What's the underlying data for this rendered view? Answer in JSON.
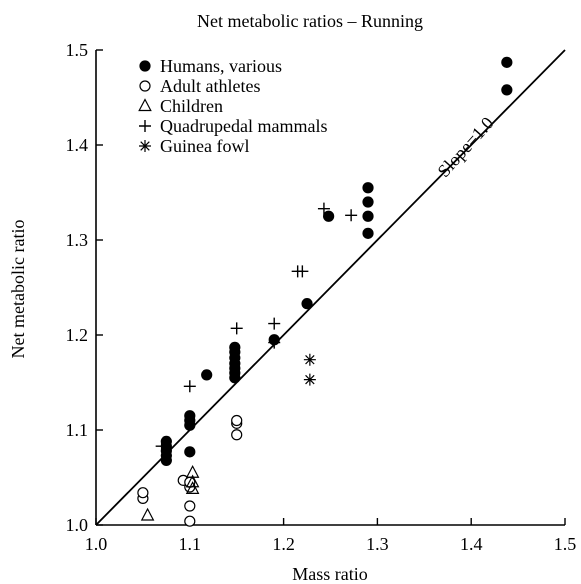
{
  "chart_data": {
    "type": "scatter",
    "title": "Net metabolic ratios – Running",
    "xlabel": "Mass ratio",
    "ylabel": "Net metabolic ratio",
    "xlim": [
      1.0,
      1.5
    ],
    "ylim": [
      1.0,
      1.5
    ],
    "x_ticks": [
      "1.0",
      "1.1",
      "1.2",
      "1.3",
      "1.4",
      "1.5"
    ],
    "y_ticks": [
      "1.0",
      "1.1",
      "1.2",
      "1.3",
      "1.4",
      "1.5"
    ],
    "grid": false,
    "legend_position": "top-left",
    "reference_line": {
      "label": "Slope=1.0",
      "from": [
        1.0,
        1.0
      ],
      "to": [
        1.5,
        1.5
      ]
    },
    "series": [
      {
        "name": "Humans, various",
        "marker": "filled-circle",
        "points": [
          [
            1.075,
            1.068
          ],
          [
            1.075,
            1.073
          ],
          [
            1.075,
            1.078
          ],
          [
            1.075,
            1.083
          ],
          [
            1.075,
            1.088
          ],
          [
            1.1,
            1.077
          ],
          [
            1.1,
            1.105
          ],
          [
            1.1,
            1.11
          ],
          [
            1.1,
            1.115
          ],
          [
            1.118,
            1.158
          ],
          [
            1.148,
            1.155
          ],
          [
            1.148,
            1.16
          ],
          [
            1.148,
            1.165
          ],
          [
            1.148,
            1.17
          ],
          [
            1.148,
            1.176
          ],
          [
            1.148,
            1.182
          ],
          [
            1.148,
            1.187
          ],
          [
            1.19,
            1.195
          ],
          [
            1.225,
            1.233
          ],
          [
            1.248,
            1.325
          ],
          [
            1.29,
            1.307
          ],
          [
            1.29,
            1.325
          ],
          [
            1.29,
            1.34
          ],
          [
            1.29,
            1.355
          ],
          [
            1.438,
            1.458
          ],
          [
            1.438,
            1.487
          ]
        ]
      },
      {
        "name": "Adult athletes",
        "marker": "open-circle",
        "points": [
          [
            1.05,
            1.028
          ],
          [
            1.05,
            1.034
          ],
          [
            1.093,
            1.047
          ],
          [
            1.1,
            1.04
          ],
          [
            1.1,
            1.045
          ],
          [
            1.1,
            1.02
          ],
          [
            1.1,
            1.004
          ],
          [
            1.15,
            1.095
          ],
          [
            1.15,
            1.107
          ],
          [
            1.15,
            1.11
          ]
        ]
      },
      {
        "name": "Children",
        "marker": "open-triangle",
        "points": [
          [
            1.055,
            1.01
          ],
          [
            1.103,
            1.038
          ],
          [
            1.103,
            1.045
          ],
          [
            1.103,
            1.055
          ]
        ]
      },
      {
        "name": "Quadrupedal mammals",
        "marker": "plus",
        "points": [
          [
            1.07,
            1.083
          ],
          [
            1.1,
            1.146
          ],
          [
            1.15,
            1.207
          ],
          [
            1.19,
            1.212
          ],
          [
            1.19,
            1.192
          ],
          [
            1.215,
            1.267
          ],
          [
            1.22,
            1.267
          ],
          [
            1.243,
            1.333
          ],
          [
            1.272,
            1.326
          ]
        ]
      },
      {
        "name": "Guinea fowl",
        "marker": "asterisk",
        "points": [
          [
            1.228,
            1.153
          ],
          [
            1.228,
            1.174
          ]
        ]
      }
    ]
  }
}
